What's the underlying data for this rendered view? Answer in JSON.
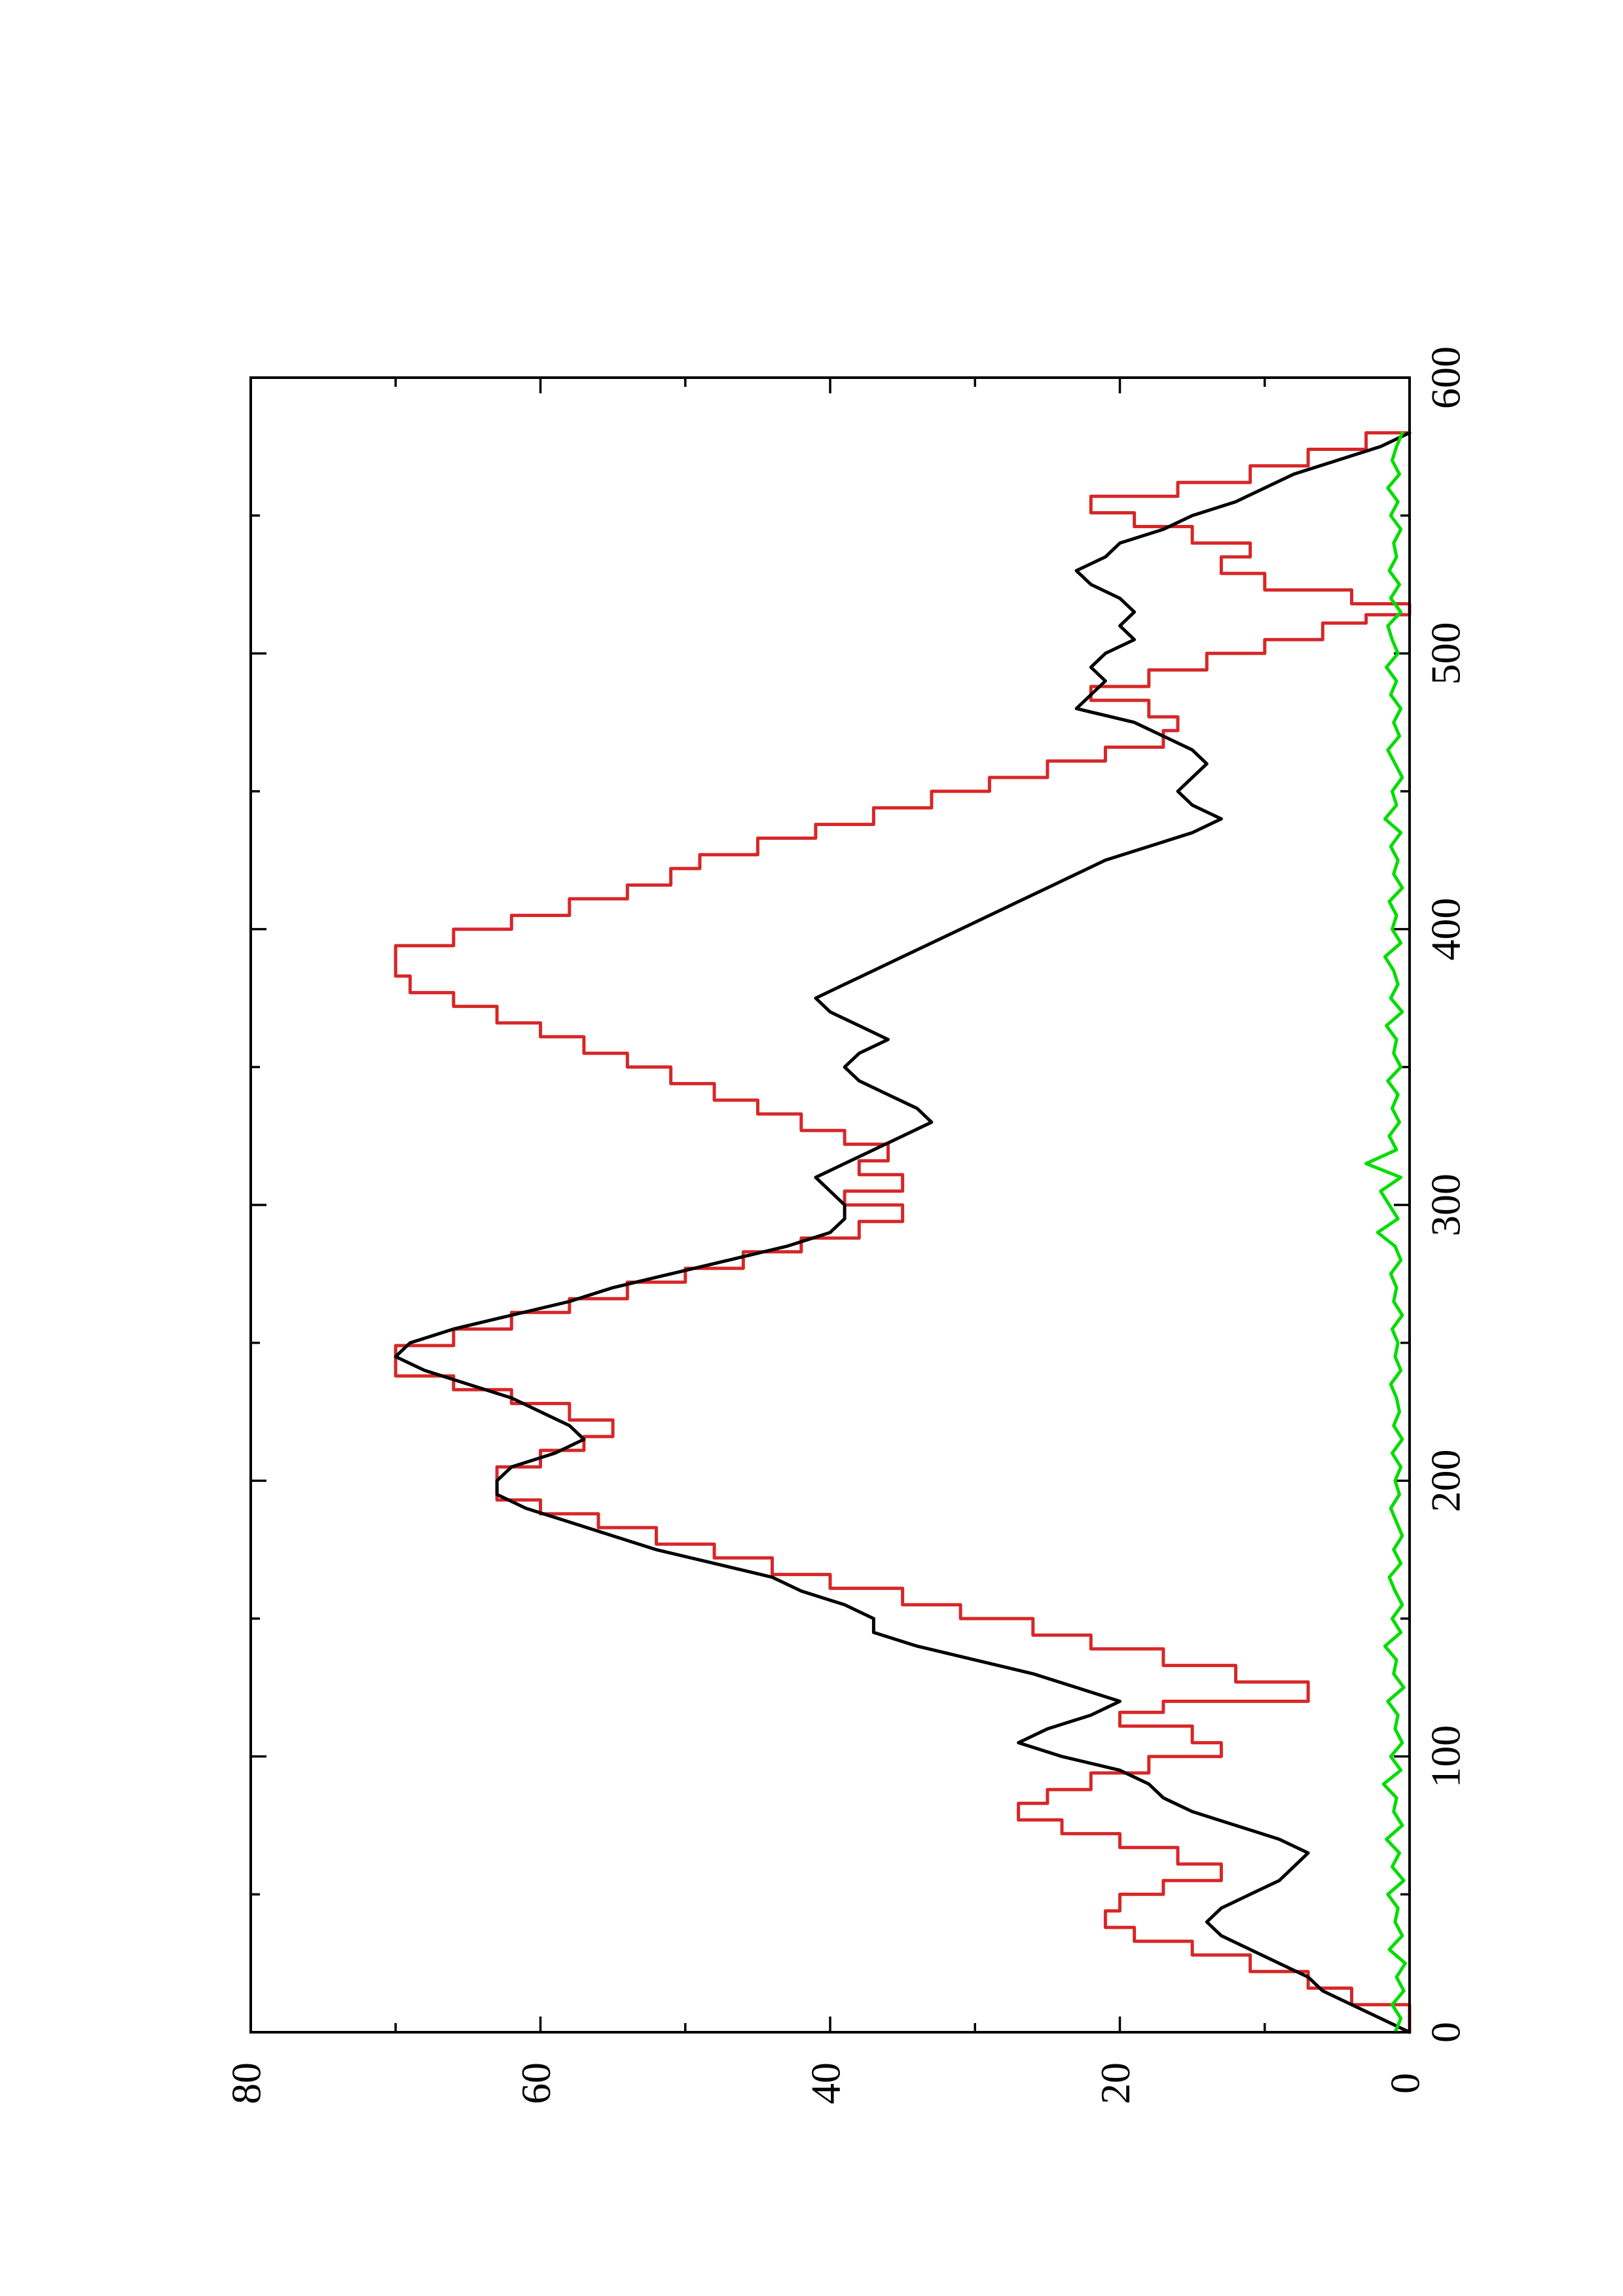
{
  "chart_data": {
    "type": "line",
    "orientation": "rotated-90-ccw",
    "title": "",
    "xlabel": "",
    "ylabel": "",
    "xlim": [
      0,
      600
    ],
    "ylim": [
      0,
      80
    ],
    "x_ticks": [
      0,
      100,
      200,
      300,
      400,
      500,
      600
    ],
    "x_minor_ticks": [
      50,
      150,
      250,
      350,
      450,
      550
    ],
    "y_ticks": [
      0,
      20,
      40,
      60,
      80
    ],
    "y_minor_ticks": [
      10,
      30,
      50,
      70
    ],
    "grid": false,
    "legend": "none",
    "series": [
      {
        "color": "#d62728",
        "step": true,
        "x": [
          0,
          10,
          16,
          22,
          28,
          33,
          38,
          44,
          50,
          55,
          61,
          67,
          72,
          77,
          83,
          88,
          94,
          100,
          105,
          111,
          116,
          120,
          127,
          133,
          139,
          144,
          150,
          155,
          161,
          166,
          172,
          177,
          183,
          188,
          193,
          200,
          205,
          211,
          216,
          222,
          228,
          233,
          238,
          244,
          249,
          255,
          261,
          266,
          272,
          277,
          283,
          288,
          294,
          300,
          305,
          311,
          316,
          322,
          327,
          333,
          338,
          344,
          350,
          355,
          361,
          366,
          372,
          377,
          383,
          388,
          394,
          400,
          405,
          411,
          416,
          422,
          427,
          433,
          438,
          444,
          450,
          455,
          461,
          466,
          472,
          477,
          483,
          488,
          494,
          500,
          505,
          511,
          514,
          518,
          523,
          529,
          535,
          540,
          546,
          551,
          557,
          562,
          568,
          574,
          580
        ],
        "y": [
          0,
          4,
          7,
          11,
          15,
          19,
          21,
          20,
          17,
          13,
          16,
          20,
          24,
          27,
          25,
          22,
          18,
          13,
          15,
          20,
          17,
          7,
          12,
          17,
          22,
          26,
          31,
          35,
          40,
          44,
          48,
          52,
          56,
          60,
          63,
          63,
          60,
          57,
          55,
          58,
          62,
          66,
          70,
          70,
          66,
          62,
          58,
          54,
          50,
          46,
          42,
          38,
          35,
          39,
          35,
          38,
          36,
          39,
          42,
          45,
          48,
          51,
          54,
          57,
          60,
          63,
          66,
          69,
          70,
          70,
          66,
          62,
          58,
          54,
          51,
          49,
          45,
          41,
          37,
          33,
          29,
          25,
          21,
          17,
          16,
          18,
          22,
          18,
          14,
          10,
          6,
          3,
          0,
          4,
          10,
          13,
          11,
          15,
          19,
          22,
          16,
          11,
          7,
          3,
          0
        ]
      },
      {
        "color": "#000000",
        "step": false,
        "x": [
          0,
          5,
          10,
          15,
          20,
          25,
          30,
          35,
          40,
          45,
          50,
          55,
          60,
          65,
          70,
          75,
          80,
          85,
          90,
          95,
          100,
          105,
          110,
          115,
          120,
          125,
          130,
          135,
          140,
          145,
          150,
          155,
          160,
          165,
          170,
          175,
          180,
          185,
          190,
          195,
          200,
          205,
          210,
          215,
          220,
          225,
          230,
          235,
          240,
          245,
          250,
          255,
          260,
          265,
          270,
          275,
          280,
          285,
          290,
          295,
          300,
          305,
          310,
          315,
          320,
          325,
          330,
          335,
          340,
          345,
          350,
          355,
          360,
          365,
          370,
          375,
          380,
          385,
          390,
          395,
          400,
          405,
          410,
          415,
          420,
          425,
          430,
          435,
          440,
          445,
          450,
          455,
          460,
          465,
          470,
          475,
          480,
          485,
          490,
          495,
          500,
          505,
          510,
          515,
          520,
          525,
          530,
          535,
          540,
          545,
          550,
          555,
          560,
          565,
          570,
          575,
          580
        ],
        "y": [
          0,
          2,
          4,
          6,
          7,
          9,
          11,
          13,
          14,
          13,
          11,
          9,
          8,
          7,
          9,
          12,
          15,
          17,
          18,
          20,
          24,
          27,
          25,
          22,
          20,
          23,
          26,
          30,
          34,
          37,
          37,
          39,
          42,
          44,
          48,
          52,
          55,
          58,
          61,
          63,
          63,
          62,
          59,
          57,
          58,
          60,
          62,
          65,
          68,
          70,
          69,
          66,
          62,
          58,
          55,
          51,
          47,
          43,
          40,
          39,
          39,
          40,
          41,
          39,
          37,
          35,
          33,
          34,
          36,
          38,
          39,
          38,
          36,
          38,
          40,
          41,
          39,
          37,
          35,
          33,
          31,
          29,
          27,
          25,
          23,
          21,
          18,
          15,
          13,
          15,
          16,
          15,
          14,
          15,
          17,
          19,
          23,
          22,
          21,
          22,
          21,
          19,
          20,
          19,
          20,
          22,
          23,
          21,
          20,
          17,
          15,
          12,
          10,
          8,
          5,
          2,
          0
        ]
      },
      {
        "color": "#00dd00",
        "step": false,
        "x": [
          0,
          5,
          10,
          15,
          20,
          25,
          30,
          35,
          40,
          45,
          50,
          55,
          60,
          65,
          70,
          75,
          80,
          85,
          90,
          95,
          100,
          105,
          110,
          115,
          120,
          125,
          130,
          135,
          140,
          145,
          150,
          155,
          160,
          165,
          170,
          175,
          180,
          185,
          190,
          195,
          200,
          205,
          210,
          215,
          220,
          225,
          230,
          235,
          240,
          245,
          250,
          255,
          260,
          265,
          270,
          275,
          280,
          285,
          290,
          295,
          300,
          305,
          310,
          315,
          320,
          325,
          330,
          335,
          340,
          345,
          350,
          355,
          360,
          365,
          370,
          375,
          380,
          385,
          390,
          395,
          400,
          405,
          410,
          415,
          420,
          425,
          430,
          435,
          440,
          445,
          450,
          455,
          460,
          465,
          470,
          475,
          480,
          485,
          490,
          495,
          500,
          505,
          510,
          515,
          520,
          525,
          530,
          535,
          540,
          545,
          550,
          555,
          560,
          565,
          570,
          575,
          580
        ],
        "y": [
          1,
          0.6,
          1.2,
          0.4,
          0.9,
          0.3,
          1.4,
          0.5,
          1.0,
          0.8,
          1.5,
          0.4,
          1.2,
          0.7,
          1.6,
          0.5,
          1.1,
          0.9,
          1.8,
          0.6,
          1.3,
          0.5,
          1.0,
          0.8,
          1.5,
          0.4,
          1.1,
          0.9,
          1.7,
          0.6,
          1.2,
          0.5,
          1.0,
          1.4,
          0.6,
          1.1,
          0.5,
          0.9,
          1.3,
          0.7,
          1.0,
          0.6,
          1.2,
          0.5,
          1.1,
          0.7,
          0.9,
          1.3,
          0.6,
          1.0,
          0.8,
          1.2,
          0.5,
          1.1,
          0.9,
          1.3,
          0.6,
          1.0,
          2.2,
          0.8,
          1.4,
          2.0,
          0.6,
          3.0,
          0.9,
          1.4,
          0.7,
          1.2,
          0.8,
          1.5,
          0.6,
          1.1,
          0.9,
          1.6,
          0.5,
          1.3,
          0.8,
          1.1,
          1.7,
          0.6,
          1.2,
          0.9,
          1.4,
          0.5,
          1.1,
          0.8,
          1.3,
          0.6,
          1.7,
          0.9,
          1.2,
          0.5,
          1.0,
          1.5,
          0.7,
          1.1,
          0.6,
          1.3,
          0.9,
          1.6,
          0.8,
          1.2,
          1.5,
          0.6,
          1.3,
          0.7,
          1.4,
          0.9,
          1.1,
          0.6,
          1.3,
          0.8,
          1.5,
          0.7,
          1.2,
          0.9,
          0.5
        ]
      }
    ]
  }
}
